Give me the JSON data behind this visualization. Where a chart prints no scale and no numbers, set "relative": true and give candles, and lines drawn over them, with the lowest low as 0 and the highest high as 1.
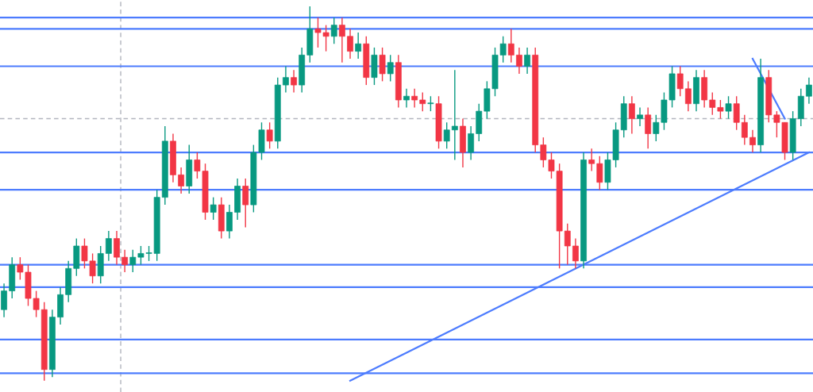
{
  "chart_data": {
    "type": "candlestick",
    "relative": true,
    "categories": [
      null,
      null,
      null,
      null,
      null,
      null,
      null,
      null,
      null,
      null,
      null,
      null,
      null,
      null,
      null,
      null,
      null,
      null,
      null,
      null,
      null,
      null,
      null,
      null,
      null,
      null,
      null,
      null,
      null,
      null,
      null,
      null,
      null,
      null,
      null,
      null,
      null,
      null,
      null,
      null,
      null,
      null,
      null,
      null,
      null,
      null,
      null,
      null,
      null,
      null,
      null,
      null,
      null,
      null,
      null,
      null,
      null,
      null,
      null,
      null,
      null,
      null,
      null,
      null,
      null,
      null,
      null,
      null,
      null,
      null,
      null,
      null,
      null,
      null,
      null,
      null,
      null,
      null,
      null,
      null,
      null,
      null,
      null,
      null,
      null,
      null,
      null,
      null,
      null,
      null,
      null,
      null,
      null,
      null,
      null,
      null,
      null,
      null,
      null,
      null,
      null
    ],
    "ohlc": [
      [
        0.19,
        0.26,
        0.17,
        0.24
      ],
      [
        0.24,
        0.33,
        0.22,
        0.31
      ],
      [
        0.31,
        0.33,
        0.27,
        0.29
      ],
      [
        0.29,
        0.31,
        0.2,
        0.22
      ],
      [
        0.22,
        0.24,
        0.17,
        0.19
      ],
      [
        0.19,
        0.21,
        0.0,
        0.03
      ],
      [
        0.03,
        0.19,
        0.01,
        0.17
      ],
      [
        0.17,
        0.25,
        0.15,
        0.23
      ],
      [
        0.23,
        0.32,
        0.21,
        0.3
      ],
      [
        0.3,
        0.38,
        0.28,
        0.36
      ],
      [
        0.36,
        0.38,
        0.3,
        0.32
      ],
      [
        0.32,
        0.34,
        0.26,
        0.28
      ],
      [
        0.28,
        0.36,
        0.26,
        0.34
      ],
      [
        0.34,
        0.4,
        0.32,
        0.38
      ],
      [
        0.38,
        0.4,
        0.31,
        0.33
      ],
      [
        0.33,
        0.35,
        0.29,
        0.31
      ],
      [
        0.31,
        0.35,
        0.29,
        0.33
      ],
      [
        0.33,
        0.36,
        0.31,
        0.34
      ],
      [
        0.34,
        0.36,
        0.32,
        0.34
      ],
      [
        0.34,
        0.51,
        0.32,
        0.49
      ],
      [
        0.49,
        0.68,
        0.47,
        0.64
      ],
      [
        0.64,
        0.66,
        0.53,
        0.55
      ],
      [
        0.55,
        0.57,
        0.5,
        0.52
      ],
      [
        0.52,
        0.63,
        0.5,
        0.59
      ],
      [
        0.59,
        0.61,
        0.54,
        0.56
      ],
      [
        0.56,
        0.58,
        0.43,
        0.45
      ],
      [
        0.45,
        0.49,
        0.43,
        0.47
      ],
      [
        0.47,
        0.49,
        0.38,
        0.4
      ],
      [
        0.4,
        0.47,
        0.38,
        0.45
      ],
      [
        0.45,
        0.54,
        0.43,
        0.52
      ],
      [
        0.52,
        0.54,
        0.41,
        0.47
      ],
      [
        0.47,
        0.63,
        0.45,
        0.61
      ],
      [
        0.61,
        0.69,
        0.59,
        0.67
      ],
      [
        0.67,
        0.69,
        0.62,
        0.64
      ],
      [
        0.64,
        0.81,
        0.62,
        0.79
      ],
      [
        0.79,
        0.84,
        0.77,
        0.81
      ],
      [
        0.81,
        0.83,
        0.77,
        0.79
      ],
      [
        0.79,
        0.89,
        0.77,
        0.87
      ],
      [
        0.87,
        1.0,
        0.85,
        0.94
      ],
      [
        0.94,
        0.97,
        0.89,
        0.93
      ],
      [
        0.93,
        0.95,
        0.88,
        0.92
      ],
      [
        0.92,
        0.97,
        0.9,
        0.95
      ],
      [
        0.95,
        0.97,
        0.85,
        0.92
      ],
      [
        0.92,
        0.94,
        0.86,
        0.88
      ],
      [
        0.88,
        0.93,
        0.86,
        0.9
      ],
      [
        0.9,
        0.92,
        0.79,
        0.81
      ],
      [
        0.81,
        0.89,
        0.79,
        0.87
      ],
      [
        0.87,
        0.89,
        0.8,
        0.82
      ],
      [
        0.82,
        0.87,
        0.8,
        0.85
      ],
      [
        0.85,
        0.87,
        0.73,
        0.75
      ],
      [
        0.75,
        0.78,
        0.73,
        0.76
      ],
      [
        0.76,
        0.78,
        0.73,
        0.75
      ],
      [
        0.75,
        0.77,
        0.72,
        0.74
      ],
      [
        0.74,
        0.76,
        0.72,
        0.74
      ],
      [
        0.74,
        0.76,
        0.62,
        0.64
      ],
      [
        0.64,
        0.69,
        0.62,
        0.67
      ],
      [
        0.67,
        0.83,
        0.59,
        0.68
      ],
      [
        0.68,
        0.7,
        0.57,
        0.61
      ],
      [
        0.61,
        0.68,
        0.59,
        0.66
      ],
      [
        0.66,
        0.74,
        0.64,
        0.72
      ],
      [
        0.72,
        0.8,
        0.7,
        0.78
      ],
      [
        0.78,
        0.89,
        0.76,
        0.87
      ],
      [
        0.87,
        0.92,
        0.85,
        0.9
      ],
      [
        0.9,
        0.94,
        0.85,
        0.87
      ],
      [
        0.87,
        0.89,
        0.82,
        0.84
      ],
      [
        0.84,
        0.89,
        0.82,
        0.87
      ],
      [
        0.87,
        0.89,
        0.61,
        0.63
      ],
      [
        0.63,
        0.65,
        0.57,
        0.59
      ],
      [
        0.59,
        0.61,
        0.54,
        0.56
      ],
      [
        0.56,
        0.58,
        0.3,
        0.4
      ],
      [
        0.4,
        0.42,
        0.31,
        0.36
      ],
      [
        0.36,
        0.38,
        0.3,
        0.32
      ],
      [
        0.32,
        0.61,
        0.3,
        0.59
      ],
      [
        0.59,
        0.62,
        0.56,
        0.58
      ],
      [
        0.58,
        0.6,
        0.51,
        0.53
      ],
      [
        0.53,
        0.61,
        0.51,
        0.59
      ],
      [
        0.59,
        0.69,
        0.57,
        0.67
      ],
      [
        0.67,
        0.76,
        0.65,
        0.74
      ],
      [
        0.74,
        0.76,
        0.66,
        0.7
      ],
      [
        0.7,
        0.73,
        0.68,
        0.71
      ],
      [
        0.71,
        0.73,
        0.62,
        0.66
      ],
      [
        0.66,
        0.71,
        0.64,
        0.69
      ],
      [
        0.69,
        0.77,
        0.67,
        0.75
      ],
      [
        0.75,
        0.84,
        0.73,
        0.82
      ],
      [
        0.82,
        0.84,
        0.76,
        0.78
      ],
      [
        0.78,
        0.8,
        0.72,
        0.74
      ],
      [
        0.74,
        0.83,
        0.72,
        0.81
      ],
      [
        0.81,
        0.83,
        0.73,
        0.75
      ],
      [
        0.75,
        0.77,
        0.71,
        0.73
      ],
      [
        0.73,
        0.75,
        0.7,
        0.72
      ],
      [
        0.72,
        0.76,
        0.7,
        0.74
      ],
      [
        0.74,
        0.76,
        0.67,
        0.69
      ],
      [
        0.69,
        0.71,
        0.63,
        0.65
      ],
      [
        0.65,
        0.67,
        0.61,
        0.63
      ],
      [
        0.63,
        0.86,
        0.61,
        0.81
      ],
      [
        0.81,
        0.83,
        0.69,
        0.71
      ],
      [
        0.71,
        0.72,
        0.65,
        0.69
      ],
      [
        0.69,
        0.69,
        0.59,
        0.61
      ],
      [
        0.61,
        0.72,
        0.59,
        0.7
      ],
      [
        0.7,
        0.78,
        0.68,
        0.76
      ],
      [
        0.76,
        0.81,
        0.74,
        0.79
      ]
    ],
    "series": [
      {
        "type": "line",
        "color": "#4d7cfe",
        "values": [
          null,
          null,
          null,
          null,
          null,
          null,
          null,
          null,
          null,
          null,
          null,
          null,
          null,
          null,
          null,
          null,
          null,
          null,
          null,
          null,
          null,
          null,
          null,
          null,
          null,
          null,
          null,
          null,
          null,
          null,
          null,
          null,
          null,
          null,
          null,
          null,
          null,
          null,
          null,
          null,
          null,
          null,
          null,
          0.0,
          null,
          null,
          null,
          null,
          null,
          null,
          null,
          null,
          null,
          null,
          null,
          null,
          null,
          null,
          null,
          null,
          null,
          null,
          null,
          null,
          null,
          null,
          null,
          null,
          null,
          null,
          null,
          null,
          null,
          null,
          null,
          null,
          null,
          null,
          null,
          null,
          null,
          null,
          null,
          null,
          null,
          null,
          null,
          null,
          null,
          null,
          null,
          null,
          null,
          null,
          null,
          null,
          null,
          null,
          null,
          null,
          0.61
        ]
      },
      {
        "type": "line",
        "color": "#4d7cfe",
        "values": [
          null,
          null,
          null,
          null,
          null,
          null,
          null,
          null,
          null,
          null,
          null,
          null,
          null,
          null,
          null,
          null,
          null,
          null,
          null,
          null,
          null,
          null,
          null,
          null,
          null,
          null,
          null,
          null,
          null,
          null,
          null,
          null,
          null,
          null,
          null,
          null,
          null,
          null,
          null,
          null,
          null,
          null,
          null,
          null,
          null,
          null,
          null,
          null,
          null,
          null,
          null,
          null,
          null,
          null,
          null,
          null,
          null,
          null,
          null,
          null,
          null,
          null,
          null,
          null,
          null,
          null,
          null,
          null,
          null,
          null,
          null,
          null,
          null,
          null,
          null,
          null,
          null,
          null,
          null,
          null,
          null,
          null,
          null,
          null,
          null,
          null,
          null,
          null,
          null,
          null,
          null,
          null,
          null,
          0.86,
          null,
          null,
          null,
          0.7,
          null,
          null,
          null
        ]
      }
    ],
    "ref_lines": [
      {
        "axis": "y",
        "value": 0.97,
        "color": "#4d7cfe"
      },
      {
        "axis": "y",
        "value": 0.94,
        "color": "#4d7cfe"
      },
      {
        "axis": "y",
        "value": 0.84,
        "color": "#4d7cfe"
      },
      {
        "axis": "y",
        "value": 0.61,
        "color": "#4d7cfe"
      },
      {
        "axis": "y",
        "value": 0.51,
        "color": "#4d7cfe"
      },
      {
        "axis": "y",
        "value": 0.31,
        "color": "#4d7cfe"
      },
      {
        "axis": "y",
        "value": 0.25,
        "color": "#4d7cfe"
      },
      {
        "axis": "y",
        "value": 0.11,
        "color": "#4d7cfe"
      },
      {
        "axis": "y",
        "value": 0.02,
        "color": "#4d7cfe"
      },
      {
        "axis": "y",
        "value": 0.7,
        "color": "#b2b5be",
        "line_style": "dashed"
      }
    ]
  }
}
